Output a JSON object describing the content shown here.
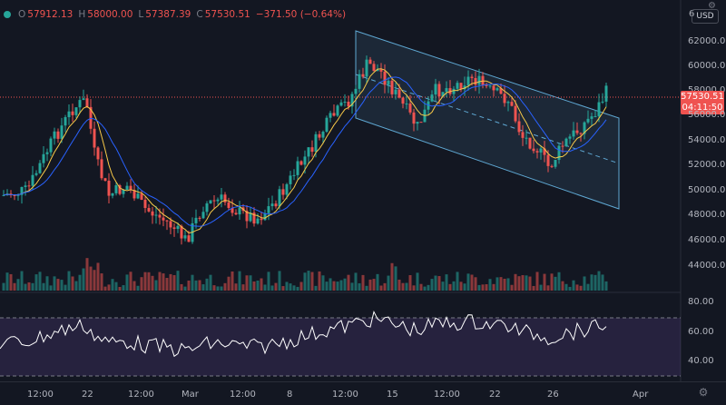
{
  "ohlc": {
    "open_label": "O",
    "open": "57912.13",
    "high_label": "H",
    "high": "58000.00",
    "low_label": "L",
    "low": "57387.39",
    "close_label": "C",
    "close": "57530.51",
    "change": "−371.50 (−0.64%)"
  },
  "currency_badge": "USD",
  "price_scale_partial_top": "6",
  "price_ticks": [
    "62000.00",
    "60000.00",
    "58000.00",
    "56000.00",
    "54000.00",
    "52000.00",
    "50000.00",
    "48000.00",
    "46000.00",
    "44000.00"
  ],
  "last_price": {
    "price": "57530.51",
    "countdown": "04:11:50"
  },
  "rsi_ticks": [
    "80.00",
    "60.00",
    "40.00"
  ],
  "time_ticks": [
    "12:00",
    "22",
    "12:00",
    "Mar",
    "12:00",
    "8",
    "12:00",
    "15",
    "12:00",
    "22",
    "26",
    "Apr"
  ],
  "colors": {
    "background": "#131722",
    "up": "#26a69a",
    "down": "#ef5350",
    "ma_fast": "#f7c948",
    "ma_slow": "#2962ff",
    "rsi_line": "#ffffff",
    "rsi_band": "#7e57c2",
    "channel": "#5fa8d3"
  },
  "icons": {
    "status_dot": "circle-icon",
    "settings": "gear-icon"
  }
}
